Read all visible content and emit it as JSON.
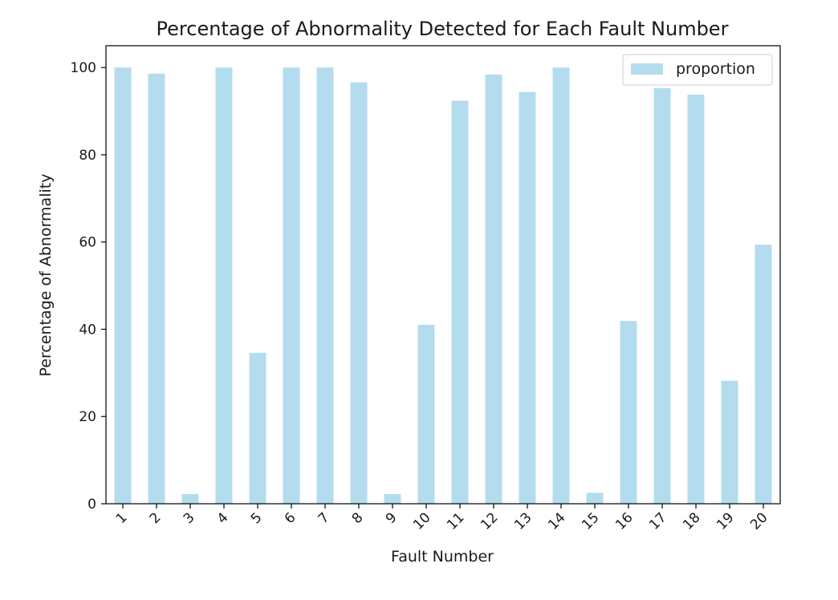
{
  "chart_data": {
    "type": "bar",
    "title": "Percentage of Abnormality Detected for Each Fault Number",
    "xlabel": "Fault Number",
    "ylabel": "Percentage of Abnormality",
    "categories": [
      "1",
      "2",
      "3",
      "4",
      "5",
      "6",
      "7",
      "8",
      "9",
      "10",
      "11",
      "12",
      "13",
      "14",
      "15",
      "16",
      "17",
      "18",
      "19",
      "20"
    ],
    "series": [
      {
        "name": "proportion",
        "color": "#b4dcef",
        "values": [
          100.0,
          98.6,
          2.2,
          100.0,
          34.6,
          100.0,
          100.0,
          96.6,
          2.2,
          41.0,
          92.4,
          98.4,
          94.4,
          100.0,
          2.5,
          41.9,
          95.3,
          93.8,
          28.2,
          59.4
        ]
      }
    ],
    "ylim": [
      0,
      105.0
    ],
    "yticks": [
      0,
      20,
      40,
      60,
      80,
      100
    ],
    "grid": false,
    "legend": "top-right",
    "x_tick_rotation": 45
  }
}
